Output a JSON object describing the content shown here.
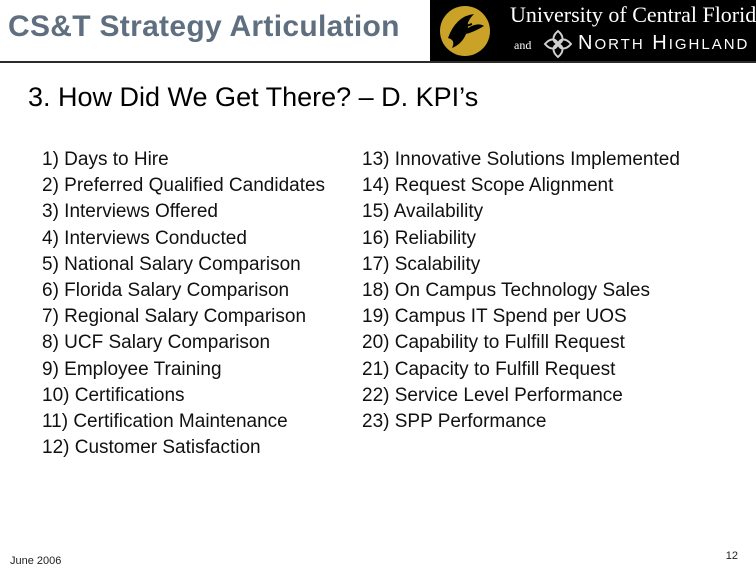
{
  "header": {
    "title": "CS&T Strategy Articulation",
    "logo": {
      "university": "University of Central Florida",
      "and": "and",
      "partner_n": "N",
      "partner_orth": "ORTH",
      "partner_h": "H",
      "partner_ighland": "IGHLAND"
    }
  },
  "slide": {
    "title": "3. How Did We Get There? – D. KPI’s"
  },
  "kpis": {
    "left": [
      "1) Days to Hire",
      "2) Preferred Qualified Candidates",
      "3) Interviews Offered",
      "4) Interviews Conducted",
      "5) National Salary Comparison",
      "6) Florida Salary Comparison",
      "7) Regional Salary Comparison",
      "8) UCF Salary Comparison",
      "9) Employee Training",
      "10) Certifications",
      "11) Certification Maintenance",
      "12) Customer Satisfaction"
    ],
    "right": [
      "13) Innovative Solutions Implemented",
      "14) Request Scope Alignment",
      "15) Availability",
      "16) Reliability",
      "17) Scalability",
      "18) On Campus Technology Sales",
      "19) Campus IT Spend per UOS",
      "20) Capability to Fulfill Request",
      "21) Capacity to Fulfill Request",
      "22) Service Level Performance",
      "23) SPP Performance"
    ]
  },
  "footer": {
    "date": "June 2006",
    "page": "12"
  },
  "colors": {
    "header_title": "#5f6f80",
    "logo_background": "#000000",
    "pegasus_gold": "#c9a227",
    "rule": "#2b2b2b"
  },
  "icons": {
    "pegasus": "ucf-pegasus-logo",
    "north_highland": "north-highland-star-logo"
  }
}
